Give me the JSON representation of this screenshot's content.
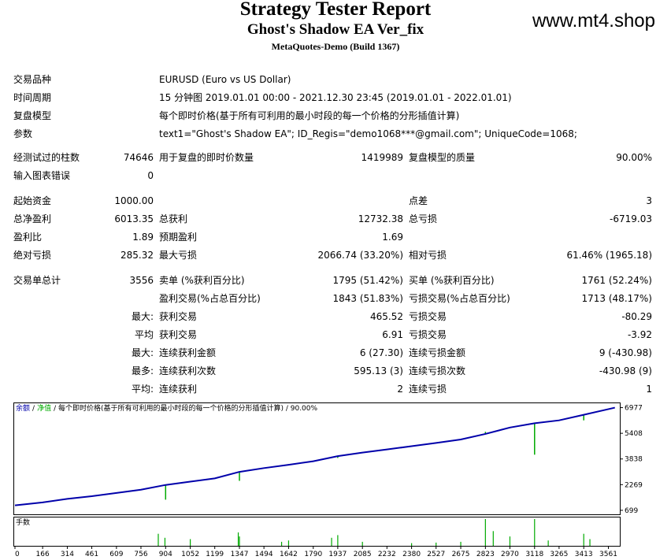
{
  "header": {
    "title": "Strategy Tester Report",
    "ea_name": "Ghost's Shadow EA Ver_fix",
    "server": "MetaQuotes-Demo (Build 1367)",
    "watermark": "www.mt4.shop"
  },
  "info": {
    "symbol_label": "交易品种",
    "symbol": "EURUSD (Euro vs US Dollar)",
    "period_label": "时间周期",
    "period": "15 分钟图 2019.01.01 00:00 - 2021.12.30 23:45 (2019.01.01 - 2022.01.01)",
    "model_label": "复盘模型",
    "model": "每个即时价格(基于所有可利用的最小时段的每一个价格的分形插值计算)",
    "params_label": "参数",
    "params": "text1=\"Ghost's Shadow EA\"; ID_Regis=\"demo1068***@gmail.com\"; UniqueCode=1068;"
  },
  "quality": {
    "bars_label": "经测试过的柱数",
    "bars": "74646",
    "ticks_label": "用于复盘的即时价数量",
    "ticks": "1419989",
    "quality_label": "复盘模型的质量",
    "quality": "90.00%",
    "errors_label": "输入图表错误",
    "errors": "0"
  },
  "summary": {
    "deposit_label": "起始资金",
    "deposit": "1000.00",
    "spread_label": "点差",
    "spread": "3",
    "net_label": "总净盈利",
    "net": "6013.35",
    "gross_profit_label": "总获利",
    "gross_profit": "12732.38",
    "gross_loss_label": "总亏损",
    "gross_loss": "-6719.03",
    "pf_label": "盈利比",
    "pf": "1.89",
    "payoff_label": "预期盈利",
    "payoff": "1.69",
    "abs_dd_label": "绝对亏损",
    "abs_dd": "285.32",
    "max_dd_label": "最大亏损",
    "max_dd": "2066.74 (33.20%)",
    "rel_dd_label": "相对亏损",
    "rel_dd": "61.46% (1965.18)"
  },
  "trades": {
    "total_label": "交易单总计",
    "total": "3556",
    "short_label": "卖单 (%获利百分比)",
    "short": "1795 (51.42%)",
    "long_label": "买单 (%获利百分比)",
    "long": "1761 (52.24%)",
    "win_label": "盈利交易(%占总百分比)",
    "win": "1843 (51.83%)",
    "loss_label": "亏损交易(%占总百分比)",
    "loss": "1713 (48.17%)",
    "max_pre": "最大:",
    "max_win_label": "获利交易",
    "max_win": "465.52",
    "max_loss_label": "亏损交易",
    "max_loss": "-80.29",
    "avg_pre": "平均",
    "avg_win_label": "获利交易",
    "avg_win": "6.91",
    "avg_loss_label": "亏损交易",
    "avg_loss": "-3.92",
    "maxc_pre": "最大:",
    "maxc_win_label": "连续获利金额",
    "maxc_win": "6 (27.30)",
    "maxc_loss_label": "连续亏损金额",
    "maxc_loss": "9 (-430.98)",
    "most_pre": "最多:",
    "most_win_label": "连续获利次数",
    "most_win": "595.13 (3)",
    "most_loss_label": "连续亏损次数",
    "most_loss": "-430.98 (9)",
    "avgc_pre": "平均:",
    "avgc_win_label": "连续获利",
    "avgc_win": "2",
    "avgc_loss_label": "连续亏损",
    "avgc_loss": "1"
  },
  "chart_legend": {
    "balance": "余额",
    "sep1": "/",
    "equity": "净值",
    "rest": "/ 每个即时价格(基于所有可利用的最小时段的每一个价格的分形插值计算) / 90.00%",
    "lots": "手数",
    "balance_color": "#0000aa",
    "equity_color": "#00aa00"
  },
  "chart_data": {
    "type": "line",
    "xlabel": "",
    "ylabel": "",
    "x_ticks": [
      0,
      166,
      314,
      461,
      609,
      756,
      904,
      1052,
      1199,
      1347,
      1494,
      1642,
      1790,
      1937,
      2085,
      2232,
      2380,
      2527,
      2675,
      2823,
      2970,
      3118,
      3265,
      3413,
      3561
    ],
    "y_ticks": [
      699,
      2269,
      3838,
      5408,
      6977
    ],
    "xlim": [
      0,
      3620
    ],
    "ylim": [
      550,
      7100
    ],
    "series": [
      {
        "values": [
          [
            0,
            1000
          ],
          [
            166,
            1180
          ],
          [
            314,
            1400
          ],
          [
            461,
            1560
          ],
          [
            609,
            1760
          ],
          [
            756,
            1960
          ],
          [
            904,
            2250
          ],
          [
            1052,
            2450
          ],
          [
            1199,
            2650
          ],
          [
            1347,
            3050
          ],
          [
            1494,
            3280
          ],
          [
            1642,
            3480
          ],
          [
            1790,
            3700
          ],
          [
            1937,
            4010
          ],
          [
            2085,
            4230
          ],
          [
            2232,
            4420
          ],
          [
            2380,
            4620
          ],
          [
            2527,
            4820
          ],
          [
            2675,
            5030
          ],
          [
            2823,
            5370
          ],
          [
            2970,
            5760
          ],
          [
            3118,
            6020
          ],
          [
            3265,
            6200
          ],
          [
            3413,
            6540
          ],
          [
            3600,
            6977
          ]
        ]
      }
    ],
    "equity_drops": [
      [
        904,
        2250,
        1350
      ],
      [
        1347,
        3050,
        2500
      ],
      [
        1937,
        4010,
        3900
      ],
      [
        2823,
        5370,
        5500
      ],
      [
        3118,
        6020,
        4100
      ],
      [
        3413,
        6540,
        6200
      ]
    ],
    "lots_spikes": [
      [
        860,
        0.45
      ],
      [
        900,
        0.3
      ],
      [
        1052,
        0.25
      ],
      [
        1340,
        0.5
      ],
      [
        1347,
        0.35
      ],
      [
        1600,
        0.15
      ],
      [
        1642,
        0.2
      ],
      [
        1900,
        0.3
      ],
      [
        1937,
        0.4
      ],
      [
        2085,
        0.15
      ],
      [
        2380,
        0.1
      ],
      [
        2527,
        0.12
      ],
      [
        2675,
        0.15
      ],
      [
        2823,
        1.0
      ],
      [
        2870,
        0.55
      ],
      [
        2970,
        0.35
      ],
      [
        3118,
        1.0
      ],
      [
        3200,
        0.2
      ],
      [
        3413,
        0.45
      ],
      [
        3450,
        0.25
      ]
    ]
  }
}
